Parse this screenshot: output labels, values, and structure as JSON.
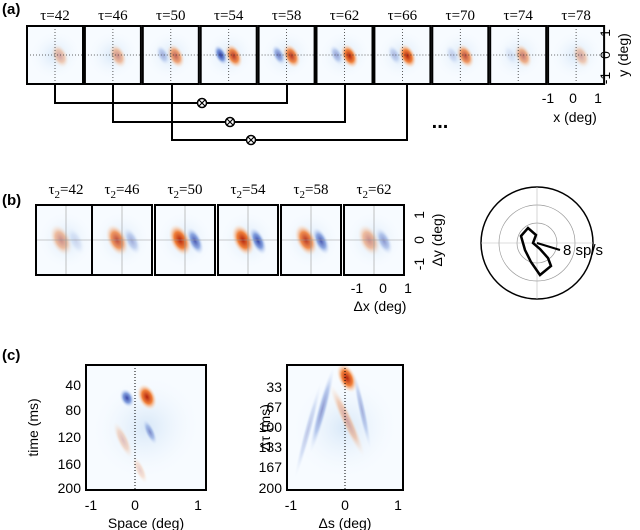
{
  "panel_a": {
    "label": "(a)",
    "frames": [
      "τ=42",
      "τ=46",
      "τ=50",
      "τ=54",
      "τ=58",
      "τ=62",
      "τ=66",
      "τ=70",
      "τ=74",
      "τ=78"
    ],
    "y_ticks": [
      "1",
      "0",
      "-1"
    ],
    "y_label": "y (deg)",
    "x_ticks": [
      "-1",
      "0",
      "1"
    ],
    "x_label": "x (deg)",
    "ellipsis": "..."
  },
  "panel_b": {
    "label": "(b)",
    "frames": [
      {
        "base": "τ",
        "sub": "2",
        "rest": "=42"
      },
      {
        "base": "τ",
        "sub": "2",
        "rest": "=46"
      },
      {
        "base": "τ",
        "sub": "2",
        "rest": "=50"
      },
      {
        "base": "τ",
        "sub": "2",
        "rest": "=54"
      },
      {
        "base": "τ",
        "sub": "2",
        "rest": "=58"
      },
      {
        "base": "τ",
        "sub": "2",
        "rest": "=62"
      }
    ],
    "y_ticks": [
      "1",
      "0",
      "-1"
    ],
    "y_label": "Δy (deg)",
    "x_ticks": [
      "-1",
      "0",
      "1"
    ],
    "x_label": "Δx (deg)",
    "polar_label": "8 sp/s"
  },
  "panel_c": {
    "label": "(c)",
    "left": {
      "y_ticks": [
        "40",
        "80",
        "120",
        "160",
        "200"
      ],
      "y_label": "time (ms)",
      "x_ticks": [
        "-1",
        "0",
        "1"
      ],
      "x_label": "Space (deg)"
    },
    "right": {
      "y_ticks": [
        "33",
        "67",
        "100",
        "133",
        "167",
        "200"
      ],
      "y_label": "Δτ (ms)",
      "x_ticks": [
        "-1",
        "0",
        "1"
      ],
      "x_label": "Δs (deg)"
    }
  }
}
